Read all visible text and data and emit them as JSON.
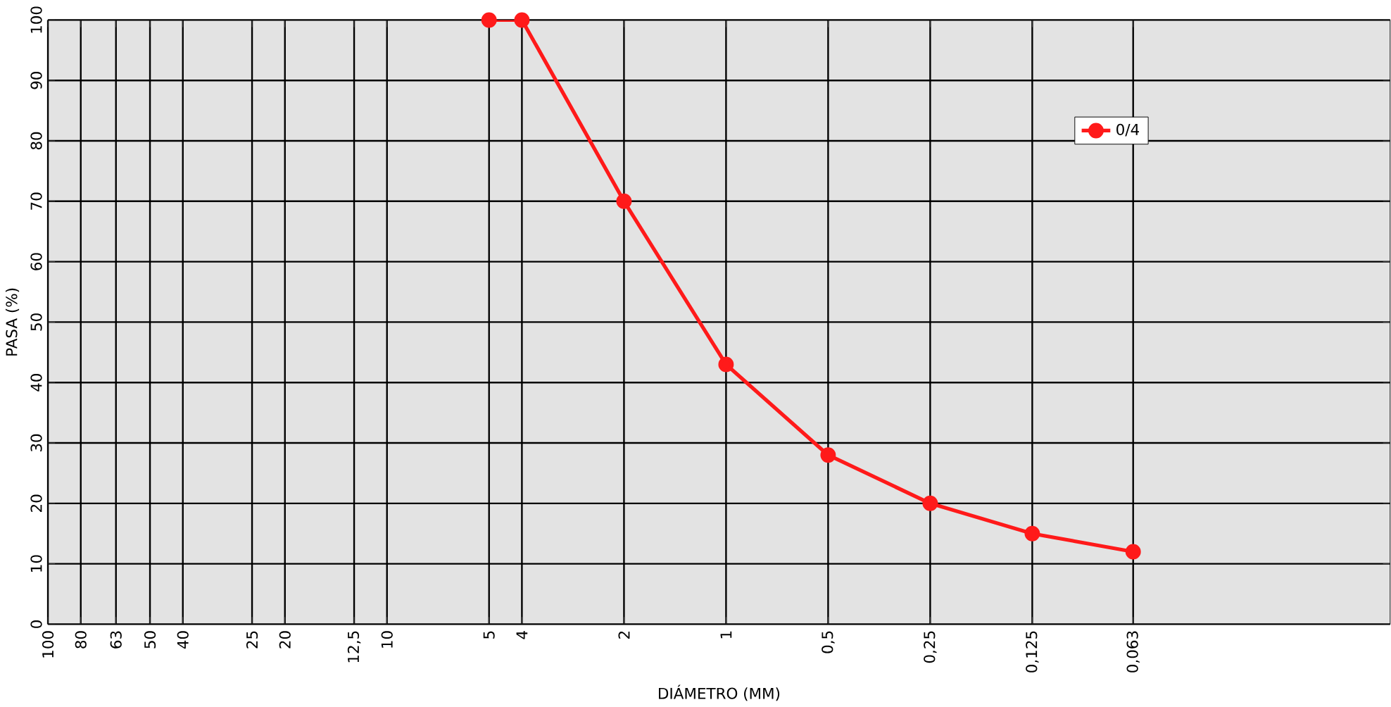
{
  "chart_data": {
    "type": "line",
    "xlabel": "DIÁMETRO (MM)",
    "ylabel": "PASA (%)",
    "x": [
      5,
      4,
      2,
      1,
      0.5,
      0.25,
      0.125,
      0.063
    ],
    "series": [
      {
        "name": "0/4",
        "color": "#ff1a1a",
        "values": [
          100,
          100,
          70,
          43,
          28,
          20,
          15,
          12
        ]
      }
    ],
    "log": "x",
    "xlim": [
      100,
      0.011
    ],
    "ylim": [
      0,
      100
    ],
    "xticks": [
      100,
      80,
      63,
      50,
      40,
      25,
      20,
      {
        "value": 12.5,
        "label": "12,5"
      },
      10,
      5,
      4,
      2,
      1,
      {
        "value": 0.5,
        "label": "0,5"
      },
      {
        "value": 0.25,
        "label": "0,25"
      },
      {
        "value": 0.125,
        "label": "0,125"
      },
      {
        "value": 0.063,
        "label": "0,063"
      }
    ],
    "yticks": [
      0,
      10,
      20,
      30,
      40,
      50,
      60,
      70,
      80,
      90,
      100
    ],
    "grid": true,
    "legend": "top right",
    "marker": "circle",
    "line_style": "solid"
  }
}
